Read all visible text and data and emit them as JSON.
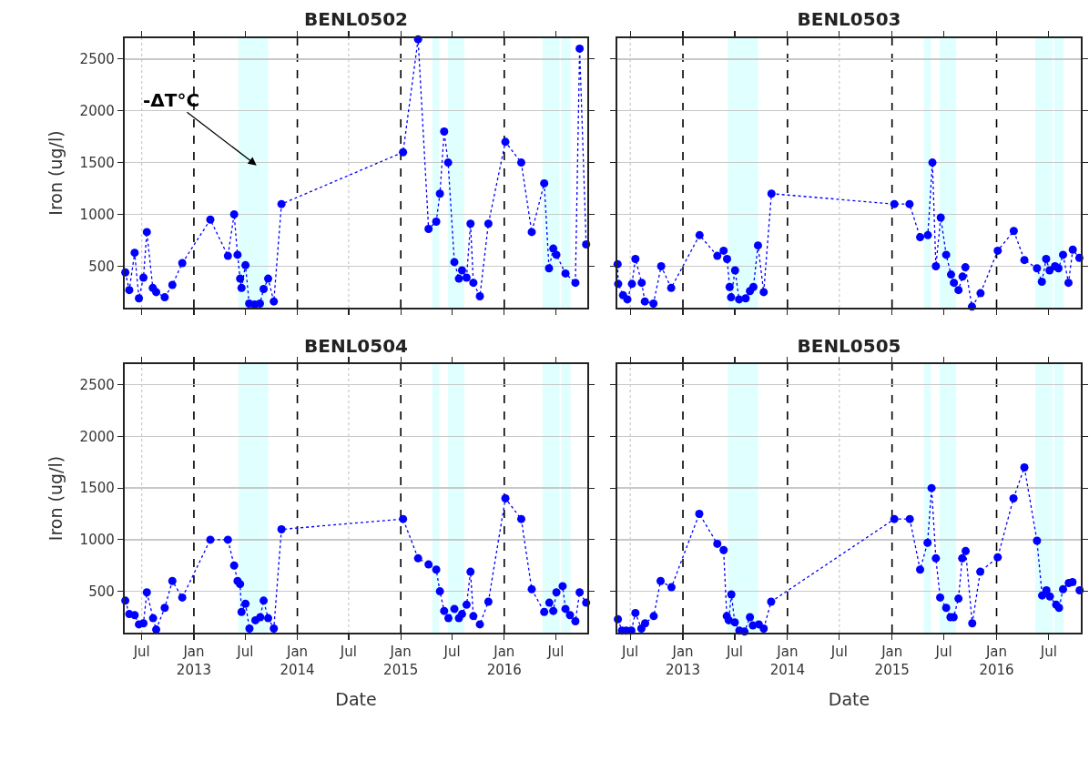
{
  "chart_data": [
    {
      "type": "line",
      "title": "BENL0502",
      "ylabel": "Iron (ug/l)",
      "color": "#0000ff",
      "marker": "circle",
      "line_style": "dotted",
      "grid": true,
      "tick_labels": "y",
      "x": [
        "2012-05-04",
        "2012-05-18",
        "2012-06-06",
        "2012-06-21",
        "2012-07-07",
        "2012-07-19",
        "2012-08-09",
        "2012-08-21",
        "2012-09-20",
        "2012-10-17",
        "2012-11-21",
        "2013-02-28",
        "2013-05-01",
        "2013-05-23",
        "2013-06-04",
        "2013-06-13",
        "2013-06-18",
        "2013-07-02",
        "2013-07-15",
        "2013-08-03",
        "2013-08-22",
        "2013-09-04",
        "2013-09-20",
        "2013-10-10",
        "2013-11-06",
        "2015-01-09",
        "2015-03-03",
        "2015-04-09",
        "2015-05-06",
        "2015-05-19",
        "2015-06-03",
        "2015-06-17",
        "2015-07-09",
        "2015-07-25",
        "2015-08-05",
        "2015-08-21",
        "2015-09-04",
        "2015-09-14",
        "2015-10-07",
        "2015-11-06",
        "2016-01-05",
        "2016-03-01",
        "2016-04-07",
        "2016-05-21",
        "2016-06-07",
        "2016-06-22",
        "2016-07-03",
        "2016-08-04",
        "2016-09-08",
        "2016-09-23",
        "2016-10-16"
      ],
      "values": [
        440,
        270,
        630,
        190,
        390,
        830,
        290,
        250,
        200,
        320,
        530,
        950,
        600,
        1000,
        610,
        380,
        290,
        510,
        140,
        130,
        140,
        280,
        380,
        160,
        1100,
        1600,
        2690,
        860,
        930,
        1200,
        1800,
        1500,
        540,
        380,
        460,
        390,
        910,
        340,
        210,
        910,
        1700,
        1500,
        830,
        1300,
        480,
        670,
        610,
        430,
        340,
        2600,
        710
      ],
      "xlim": [
        "2012-05-02",
        "2016-10-20"
      ],
      "ylim": [
        100,
        2700
      ],
      "xticks": [
        {
          "value": "2012-07-01",
          "label": null
        },
        {
          "value": "2013-01-01",
          "label": null
        },
        {
          "value": "2013-07-01",
          "label": null
        },
        {
          "value": "2014-01-01",
          "label": null
        },
        {
          "value": "2014-07-01",
          "label": null
        },
        {
          "value": "2015-01-01",
          "label": null
        },
        {
          "value": "2015-07-01",
          "label": null
        },
        {
          "value": "2016-01-01",
          "label": null
        },
        {
          "value": "2016-07-01",
          "label": null
        }
      ],
      "yticks": [
        500,
        1000,
        1500,
        2000,
        2500
      ],
      "bands": [
        {
          "axis": "x",
          "from": "2013-06-07",
          "to": "2013-09-20",
          "color": "#e0ffff"
        },
        {
          "axis": "x",
          "from": "2015-04-22",
          "to": "2015-05-17",
          "color": "#e0ffff"
        },
        {
          "axis": "x",
          "from": "2015-06-16",
          "to": "2015-08-13",
          "color": "#e0ffff"
        },
        {
          "axis": "x",
          "from": "2016-05-15",
          "to": "2016-07-14",
          "color": "#e0ffff"
        },
        {
          "axis": "x",
          "from": "2016-07-20",
          "to": "2016-08-22",
          "color": "#e0ffff"
        }
      ],
      "annotations": [
        "-ΔT°C"
      ]
    },
    {
      "type": "line",
      "title": "BENL0503",
      "color": "#0000ff",
      "marker": "circle",
      "line_style": "dotted",
      "grid": true,
      "tick_labels": false,
      "x": [
        "2012-05-18",
        "2012-05-20",
        "2012-06-06",
        "2012-06-21",
        "2012-07-07",
        "2012-07-19",
        "2012-08-10",
        "2012-08-21",
        "2012-09-20",
        "2012-10-17",
        "2012-11-21",
        "2013-02-28",
        "2013-05-01",
        "2013-05-23",
        "2013-06-04",
        "2013-06-13",
        "2013-06-18",
        "2013-07-02",
        "2013-07-16",
        "2013-08-08",
        "2013-08-23",
        "2013-09-04",
        "2013-09-20",
        "2013-10-10",
        "2013-11-06",
        "2015-01-09",
        "2015-03-03",
        "2015-04-09",
        "2015-05-06",
        "2015-05-22",
        "2015-06-03",
        "2015-06-20",
        "2015-07-09",
        "2015-07-26",
        "2015-08-05",
        "2015-08-21",
        "2015-09-04",
        "2015-09-14",
        "2015-10-07",
        "2015-11-06",
        "2016-01-05",
        "2016-03-01",
        "2016-04-07",
        "2016-05-21",
        "2016-06-07",
        "2016-06-22",
        "2016-07-04",
        "2016-07-23",
        "2016-08-04",
        "2016-08-20",
        "2016-09-08",
        "2016-09-23",
        "2016-10-16"
      ],
      "values": [
        520,
        330,
        220,
        180,
        330,
        570,
        340,
        160,
        140,
        500,
        290,
        800,
        600,
        650,
        570,
        300,
        200,
        460,
        180,
        190,
        260,
        300,
        700,
        250,
        1200,
        1100,
        1100,
        780,
        800,
        1500,
        500,
        970,
        610,
        420,
        340,
        270,
        400,
        490,
        110,
        240,
        650,
        840,
        560,
        480,
        350,
        570,
        460,
        500,
        480,
        610,
        340,
        660,
        580
      ],
      "xlim": [
        "2012-05-17",
        "2016-10-21"
      ],
      "ylim": [
        100,
        2700
      ],
      "xticks": [
        {
          "value": "2012-07-01",
          "label": null
        },
        {
          "value": "2013-01-01",
          "label": null
        },
        {
          "value": "2013-07-01",
          "label": null
        },
        {
          "value": "2014-01-01",
          "label": null
        },
        {
          "value": "2014-07-01",
          "label": null
        },
        {
          "value": "2015-01-01",
          "label": null
        },
        {
          "value": "2015-07-01",
          "label": null
        },
        {
          "value": "2016-01-01",
          "label": null
        },
        {
          "value": "2016-07-01",
          "label": null
        }
      ],
      "yticks": [
        500,
        1000,
        1500,
        2000,
        2500
      ],
      "bands": [
        {
          "axis": "x",
          "from": "2013-06-07",
          "to": "2013-09-20",
          "color": "#e0ffff"
        },
        {
          "axis": "x",
          "from": "2015-04-22",
          "to": "2015-05-17",
          "color": "#e0ffff"
        },
        {
          "axis": "x",
          "from": "2015-06-16",
          "to": "2015-08-13",
          "color": "#e0ffff"
        },
        {
          "axis": "x",
          "from": "2016-05-15",
          "to": "2016-07-14",
          "color": "#e0ffff"
        },
        {
          "axis": "x",
          "from": "2016-07-20",
          "to": "2016-08-22",
          "color": "#e0ffff"
        }
      ]
    },
    {
      "type": "line",
      "title": "BENL0504",
      "xlabel": "Date",
      "ylabel": "Iron (ug/l)",
      "color": "#0000ff",
      "marker": "circle",
      "line_style": "dotted",
      "grid": true,
      "x": [
        "2012-05-04",
        "2012-05-18",
        "2012-06-06",
        "2012-06-21",
        "2012-07-07",
        "2012-07-19",
        "2012-08-10",
        "2012-08-21",
        "2012-09-20",
        "2012-10-17",
        "2012-11-21",
        "2013-02-28",
        "2013-05-01",
        "2013-05-23",
        "2013-06-04",
        "2013-06-13",
        "2013-06-18",
        "2013-07-02",
        "2013-07-16",
        "2013-08-06",
        "2013-08-23",
        "2013-09-04",
        "2013-09-20",
        "2013-10-10",
        "2013-11-06",
        "2015-01-09",
        "2015-03-03",
        "2015-04-09",
        "2015-05-06",
        "2015-05-19",
        "2015-06-03",
        "2015-06-18",
        "2015-07-09",
        "2015-07-25",
        "2015-08-05",
        "2015-08-21",
        "2015-09-04",
        "2015-09-14",
        "2015-10-07",
        "2015-11-06",
        "2016-01-05",
        "2016-03-01",
        "2016-04-07",
        "2016-05-21",
        "2016-06-08",
        "2016-06-22",
        "2016-07-03",
        "2016-07-25",
        "2016-08-04",
        "2016-08-20",
        "2016-09-08",
        "2016-09-23",
        "2016-10-16"
      ],
      "values": [
        410,
        280,
        270,
        180,
        190,
        490,
        240,
        130,
        340,
        600,
        440,
        1000,
        1000,
        750,
        600,
        570,
        300,
        380,
        140,
        220,
        250,
        410,
        240,
        140,
        1100,
        1200,
        820,
        760,
        710,
        500,
        310,
        240,
        330,
        240,
        280,
        370,
        690,
        260,
        180,
        400,
        1400,
        1200,
        520,
        300,
        390,
        310,
        490,
        550,
        330,
        270,
        210,
        490,
        390
      ],
      "xlim": [
        "2012-05-02",
        "2016-10-20"
      ],
      "ylim": [
        100,
        2700
      ],
      "xticks": [
        {
          "value": "2012-07-01",
          "label": "Jul"
        },
        {
          "value": "2013-01-01",
          "label": "Jan\n2013"
        },
        {
          "value": "2013-07-01",
          "label": "Jul"
        },
        {
          "value": "2014-01-01",
          "label": "Jan\n2014"
        },
        {
          "value": "2014-07-01",
          "label": "Jul"
        },
        {
          "value": "2015-01-01",
          "label": "Jan\n2015"
        },
        {
          "value": "2015-07-01",
          "label": "Jul"
        },
        {
          "value": "2016-01-01",
          "label": "Jan\n2016"
        },
        {
          "value": "2016-07-01",
          "label": "Jul"
        }
      ],
      "yticks": [
        500,
        1000,
        1500,
        2000,
        2500
      ],
      "bands": [
        {
          "axis": "x",
          "from": "2013-06-07",
          "to": "2013-09-20",
          "color": "#e0ffff"
        },
        {
          "axis": "x",
          "from": "2015-04-22",
          "to": "2015-05-17",
          "color": "#e0ffff"
        },
        {
          "axis": "x",
          "from": "2015-06-16",
          "to": "2015-08-13",
          "color": "#e0ffff"
        },
        {
          "axis": "x",
          "from": "2016-05-15",
          "to": "2016-07-14",
          "color": "#e0ffff"
        },
        {
          "axis": "x",
          "from": "2016-07-20",
          "to": "2016-08-22",
          "color": "#e0ffff"
        }
      ]
    },
    {
      "type": "line",
      "title": "BENL0505",
      "xlabel": "Date",
      "color": "#0000ff",
      "marker": "circle",
      "line_style": "dotted",
      "grid": true,
      "tick_labels": "x",
      "x": [
        "2012-05-19",
        "2012-06-02",
        "2012-06-17",
        "2012-07-05",
        "2012-07-19",
        "2012-08-09",
        "2012-08-22",
        "2012-09-21",
        "2012-10-15",
        "2012-11-22",
        "2013-02-27",
        "2013-05-01",
        "2013-05-23",
        "2013-06-03",
        "2013-06-10",
        "2013-06-19",
        "2013-07-01",
        "2013-07-17",
        "2013-08-04",
        "2013-08-23",
        "2013-09-02",
        "2013-09-23",
        "2013-10-10",
        "2013-11-05",
        "2015-01-09",
        "2015-03-04",
        "2015-04-09",
        "2015-05-05",
        "2015-05-19",
        "2015-06-03",
        "2015-06-18",
        "2015-07-09",
        "2015-07-24",
        "2015-08-04",
        "2015-08-21",
        "2015-09-03",
        "2015-09-15",
        "2015-10-08",
        "2015-11-05",
        "2016-01-05",
        "2016-02-29",
        "2016-04-07",
        "2016-05-21",
        "2016-06-08",
        "2016-06-23",
        "2016-07-05",
        "2016-07-27",
        "2016-08-06",
        "2016-08-20",
        "2016-09-09",
        "2016-09-22",
        "2016-10-17"
      ],
      "values": [
        230,
        120,
        120,
        120,
        290,
        140,
        190,
        260,
        600,
        540,
        1250,
        960,
        900,
        260,
        220,
        470,
        200,
        120,
        110,
        250,
        170,
        180,
        140,
        400,
        1200,
        1200,
        710,
        970,
        1500,
        820,
        440,
        340,
        250,
        250,
        430,
        820,
        890,
        190,
        690,
        830,
        1400,
        1700,
        990,
        460,
        510,
        450,
        370,
        340,
        520,
        580,
        590,
        510
      ],
      "xlim": [
        "2012-05-17",
        "2016-10-21"
      ],
      "ylim": [
        100,
        2700
      ],
      "xticks": [
        {
          "value": "2012-07-01",
          "label": "Jul"
        },
        {
          "value": "2013-01-01",
          "label": "Jan\n2013"
        },
        {
          "value": "2013-07-01",
          "label": "Jul"
        },
        {
          "value": "2014-01-01",
          "label": "Jan\n2014"
        },
        {
          "value": "2014-07-01",
          "label": "Jul"
        },
        {
          "value": "2015-01-01",
          "label": "Jan\n2015"
        },
        {
          "value": "2015-07-01",
          "label": "Jul"
        },
        {
          "value": "2016-01-01",
          "label": "Jan\n2016"
        },
        {
          "value": "2016-07-01",
          "label": "Jul"
        }
      ],
      "yticks": [
        500,
        1000,
        1500,
        2000,
        2500
      ],
      "bands": [
        {
          "axis": "x",
          "from": "2013-06-07",
          "to": "2013-09-20",
          "color": "#e0ffff"
        },
        {
          "axis": "x",
          "from": "2015-04-22",
          "to": "2015-05-17",
          "color": "#e0ffff"
        },
        {
          "axis": "x",
          "from": "2015-06-16",
          "to": "2015-08-13",
          "color": "#e0ffff"
        },
        {
          "axis": "x",
          "from": "2016-05-15",
          "to": "2016-07-14",
          "color": "#e0ffff"
        },
        {
          "axis": "x",
          "from": "2016-07-20",
          "to": "2016-08-22",
          "color": "#e0ffff"
        }
      ]
    }
  ]
}
